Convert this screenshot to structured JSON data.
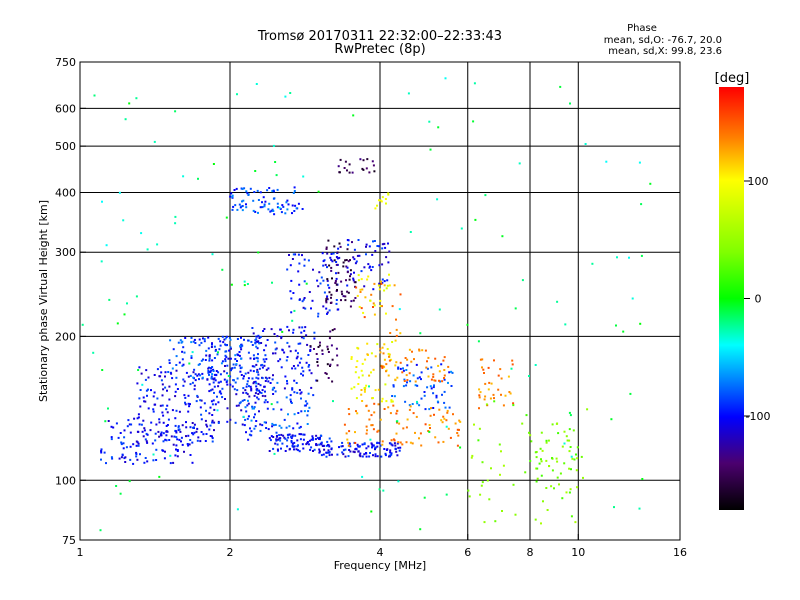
{
  "chart_data": {
    "type": "scatter",
    "title": "Tromsø 20170311 22:32:00–22:33:43",
    "subtitle": "RwPretec (8p)",
    "xlabel": "Frequency [MHz]",
    "ylabel": "Stationary phase Virtual Height [km]",
    "x_scale": "log",
    "y_scale": "log",
    "xlim": [
      1,
      16
    ],
    "ylim": [
      75,
      750
    ],
    "grid": true,
    "x_ticks": [
      1,
      2,
      4,
      6,
      8,
      10,
      16
    ],
    "x_tick_labels": [
      "1",
      "2",
      "4",
      "6",
      "8",
      "10",
      "16"
    ],
    "y_ticks": [
      75,
      100,
      200,
      300,
      400,
      500,
      600,
      750
    ],
    "y_tick_labels": [
      "75",
      "100",
      "200",
      "300",
      "400",
      "500",
      "600",
      "750"
    ],
    "stats": {
      "heading": "Phase",
      "line_o": "mean, sd,O: -76.7, 20.0",
      "line_x": "mean, sd,X: 99.8, 23.6"
    },
    "colorbar": {
      "label": "[deg]",
      "range": [
        -180,
        180
      ],
      "ticks": [
        100,
        0,
        -100
      ],
      "tick_labels": [
        "100",
        "0",
        "-100"
      ]
    },
    "series": [
      {
        "color_value_deg": -100,
        "clusters": [
          {
            "f": [
              1.1,
              1.7
            ],
            "h": [
              108,
              135
            ],
            "n": 120
          },
          {
            "f": [
              1.3,
              1.9
            ],
            "h": [
              120,
              175
            ],
            "n": 160
          },
          {
            "f": [
              1.8,
              2.4
            ],
            "h": [
              130,
              200
            ],
            "n": 150
          },
          {
            "f": [
              2.4,
              3.2
            ],
            "h": [
              115,
              125
            ],
            "n": 90
          },
          {
            "f": [
              3.0,
              4.4
            ],
            "h": [
              112,
              120
            ],
            "n": 110
          },
          {
            "f": [
              2.2,
              3.0
            ],
            "h": [
              150,
              210
            ],
            "n": 120
          },
          {
            "f": [
              2.6,
              3.3
            ],
            "h": [
              220,
              300
            ],
            "n": 70
          },
          {
            "f": [
              3.2,
              4.2
            ],
            "h": [
              250,
              320
            ],
            "n": 60
          }
        ]
      },
      {
        "color_value_deg": -85,
        "clusters": [
          {
            "f": [
              1.5,
              2.3
            ],
            "h": [
              160,
              200
            ],
            "n": 130
          },
          {
            "f": [
              2.0,
              2.8
            ],
            "h": [
              360,
              410
            ],
            "n": 80
          },
          {
            "f": [
              2.1,
              2.9
            ],
            "h": [
              120,
              160
            ],
            "n": 80
          },
          {
            "f": [
              4.2,
              5.6
            ],
            "h": [
              140,
              175
            ],
            "n": 60
          }
        ]
      },
      {
        "color_value_deg": -150,
        "clusters": [
          {
            "f": [
              3.1,
              3.6
            ],
            "h": [
              230,
              320
            ],
            "n": 60
          },
          {
            "f": [
              3.3,
              3.9
            ],
            "h": [
              440,
              470
            ],
            "n": 20
          },
          {
            "f": [
              2.9,
              3.3
            ],
            "h": [
              160,
              210
            ],
            "n": 30
          }
        ]
      },
      {
        "color_value_deg": 100,
        "clusters": [
          {
            "f": [
              3.5,
              4.3
            ],
            "h": [
              145,
              200
            ],
            "n": 60
          },
          {
            "f": [
              3.6,
              4.2
            ],
            "h": [
              220,
              270
            ],
            "n": 25
          },
          {
            "f": [
              3.9,
              4.3
            ],
            "h": [
              370,
              400
            ],
            "n": 10
          }
        ]
      },
      {
        "color_value_deg": 135,
        "clusters": [
          {
            "f": [
              3.4,
              5.9
            ],
            "h": [
              118,
              145
            ],
            "n": 90
          },
          {
            "f": [
              4.0,
              5.5
            ],
            "h": [
              160,
              190
            ],
            "n": 50
          },
          {
            "f": [
              6.3,
              7.4
            ],
            "h": [
              140,
              180
            ],
            "n": 35
          },
          {
            "f": [
              3.5,
              4.5
            ],
            "h": [
              200,
              260
            ],
            "n": 20
          }
        ]
      },
      {
        "color_value_deg": 40,
        "clusters": [
          {
            "f": [
              6.0,
              10.5
            ],
            "h": [
              80,
              150
            ],
            "n": 60
          },
          {
            "f": [
              8.2,
              10.0
            ],
            "h": [
              95,
              130
            ],
            "n": 40
          }
        ]
      },
      {
        "color_value_deg": -20,
        "clusters": [
          {
            "f": [
              1.0,
              14.0
            ],
            "h": [
              78,
              700
            ],
            "n": 140
          }
        ]
      }
    ]
  }
}
